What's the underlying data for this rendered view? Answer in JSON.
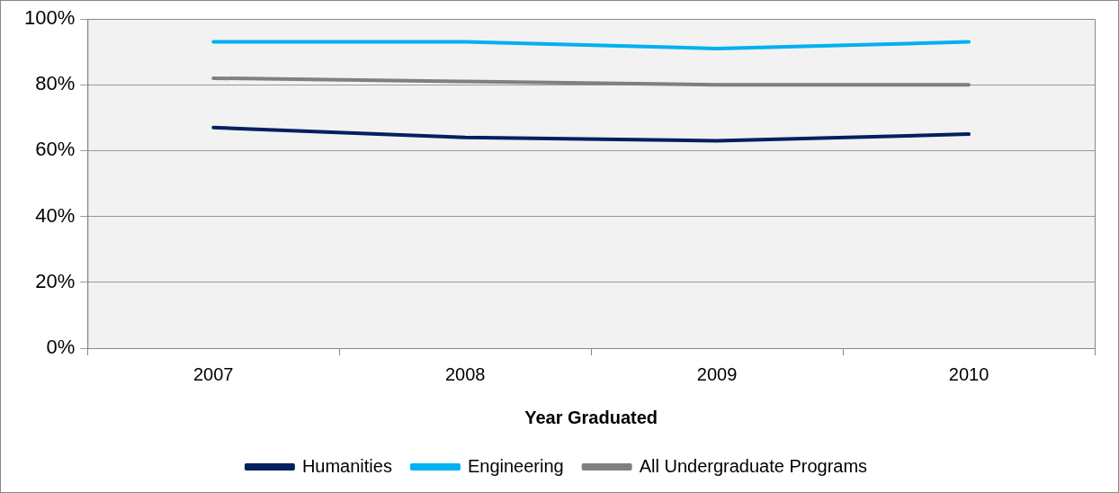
{
  "chart_data": {
    "type": "line",
    "xlabel": "Year Graduated",
    "categories": [
      "2007",
      "2008",
      "2009",
      "2010"
    ],
    "series": [
      {
        "name": "Humanities",
        "color": "#002060",
        "values": [
          67,
          64,
          63,
          65
        ]
      },
      {
        "name": "Engineering",
        "color": "#00b0f0",
        "values": [
          93,
          93,
          91,
          93
        ]
      },
      {
        "name": "All Undergraduate Programs",
        "color": "#808080",
        "values": [
          82,
          81,
          80,
          80
        ]
      }
    ],
    "ylim": [
      0,
      100
    ],
    "yticks": [
      {
        "value": 0,
        "label": "0%"
      },
      {
        "value": 20,
        "label": "20%"
      },
      {
        "value": 40,
        "label": "40%"
      },
      {
        "value": 60,
        "label": "60%"
      },
      {
        "value": 80,
        "label": "80%"
      },
      {
        "value": 100,
        "label": "100%"
      }
    ],
    "grid": "y",
    "legend": "bottom",
    "marker": "none",
    "line_style": "solid"
  }
}
